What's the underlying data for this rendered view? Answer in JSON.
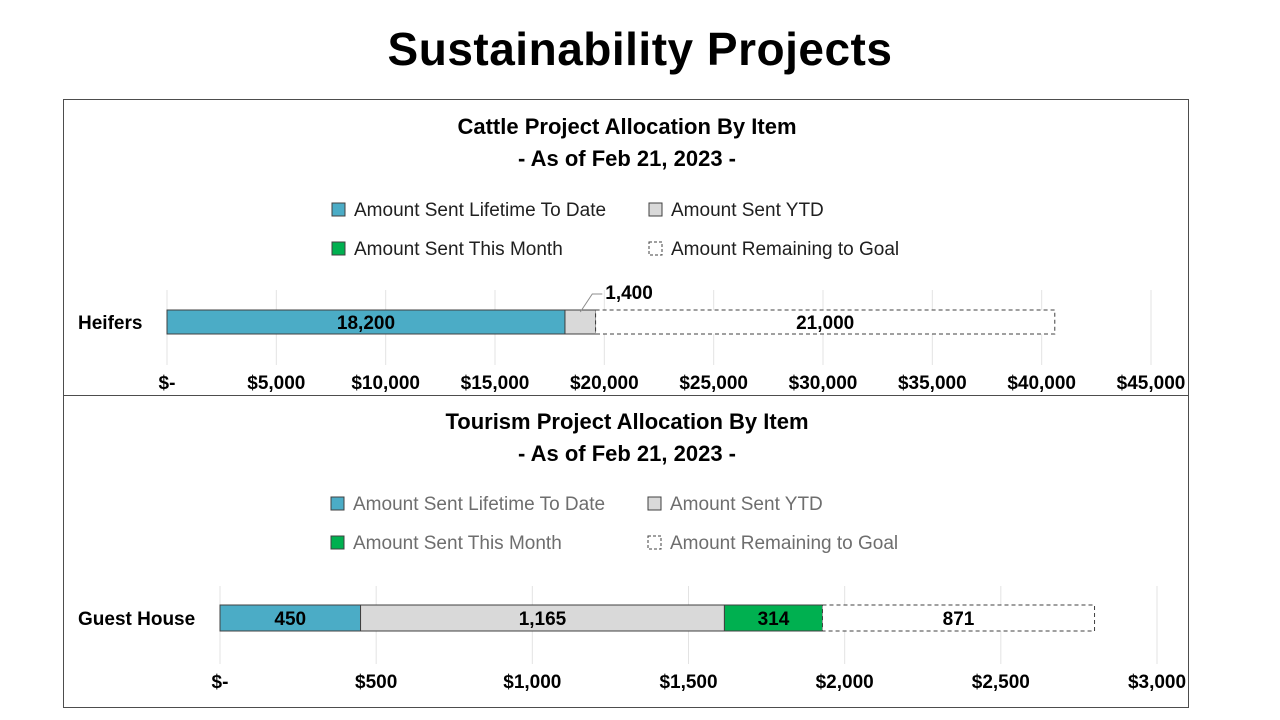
{
  "page": {
    "title": "Sustainability Projects"
  },
  "colors": {
    "lifetime": "#4bacc6",
    "ytd": "#d9d9d9",
    "month": "#00b050",
    "remaining": "#ffffff",
    "grid": "#e3e3e3",
    "border": "#404040"
  },
  "chart_data": [
    {
      "type": "bar",
      "orientation": "horizontal",
      "stacked": true,
      "title": "Cattle Project Allocation By Item",
      "subtitle": "- As of Feb 21, 2023 -",
      "legend_position": "top",
      "legend_text_color": "#202020",
      "categories": [
        "Heifers"
      ],
      "series": [
        {
          "name": "Amount Sent Lifetime To Date",
          "key": "lifetime",
          "values": [
            18200
          ],
          "labels": [
            "18,200"
          ]
        },
        {
          "name": "Amount Sent YTD",
          "key": "ytd",
          "values": [
            1400
          ],
          "labels": [
            "1,400"
          ]
        },
        {
          "name": "Amount Sent This Month",
          "key": "month",
          "values": [
            0
          ],
          "labels": [
            ""
          ]
        },
        {
          "name": "Amount Remaining to Goal",
          "key": "remaining",
          "values": [
            21000
          ],
          "labels": [
            "21,000"
          ]
        }
      ],
      "xlim": [
        0,
        45000
      ],
      "xticks": [
        0,
        5000,
        10000,
        15000,
        20000,
        25000,
        30000,
        35000,
        40000,
        45000
      ],
      "xtick_labels": [
        "$-",
        "$5,000",
        "$10,000",
        "$15,000",
        "$20,000",
        "$25,000",
        "$30,000",
        "$35,000",
        "$40,000",
        "$45,000"
      ],
      "grid": true
    },
    {
      "type": "bar",
      "orientation": "horizontal",
      "stacked": true,
      "title": "Tourism Project Allocation By Item",
      "subtitle": "- As of Feb 21, 2023 -",
      "legend_position": "top",
      "legend_text_color": "#6e6e6e",
      "categories": [
        "Guest House"
      ],
      "series": [
        {
          "name": "Amount Sent Lifetime To Date",
          "key": "lifetime",
          "values": [
            450
          ],
          "labels": [
            "450"
          ]
        },
        {
          "name": "Amount Sent YTD",
          "key": "ytd",
          "values": [
            1165
          ],
          "labels": [
            "1,165"
          ]
        },
        {
          "name": "Amount Sent This Month",
          "key": "month",
          "values": [
            314
          ],
          "labels": [
            "314"
          ]
        },
        {
          "name": "Amount Remaining to Goal",
          "key": "remaining",
          "values": [
            871
          ],
          "labels": [
            "871"
          ]
        }
      ],
      "xlim": [
        0,
        3000
      ],
      "xticks": [
        0,
        500,
        1000,
        1500,
        2000,
        2500,
        3000
      ],
      "xtick_labels": [
        "$-",
        "$500",
        "$1,000",
        "$1,500",
        "$2,000",
        "$2,500",
        "$3,000"
      ],
      "grid": true
    }
  ]
}
